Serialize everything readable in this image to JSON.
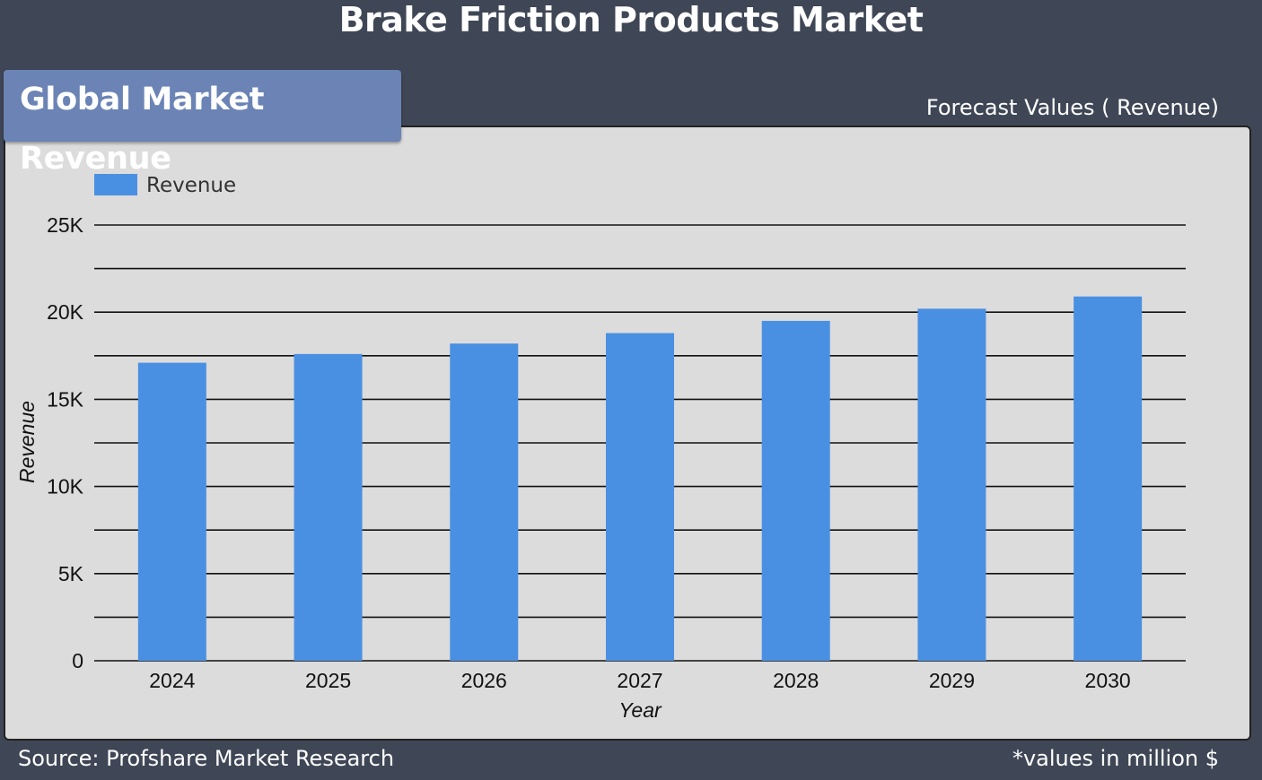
{
  "header": {
    "title": "Brake Friction Products Market"
  },
  "panel": {
    "tab_label": "Global Market Revenue",
    "forecast_label": "Forecast Values ( Revenue)"
  },
  "footer": {
    "source": "Source: Profshare Market Research",
    "note": "*values in million $"
  },
  "colors": {
    "background": "#3f4756",
    "panel": "#dcdcdc",
    "tab": "#6b84b5",
    "bar": "#4a90e2"
  },
  "chart_data": {
    "type": "bar",
    "categories": [
      "2024",
      "2025",
      "2026",
      "2027",
      "2028",
      "2029",
      "2030"
    ],
    "series": [
      {
        "name": "Revenue",
        "values": [
          17100,
          17600,
          18200,
          18800,
          19500,
          20200,
          20900
        ]
      }
    ],
    "xlabel": "Year",
    "ylabel": "Revenue",
    "ylim": [
      0,
      25000
    ],
    "yticks": [
      0,
      5000,
      10000,
      15000,
      20000,
      25000
    ],
    "ytick_labels": [
      "0",
      "5K",
      "10K",
      "15K",
      "20K",
      "25K"
    ],
    "grid": true,
    "legend": "top-left"
  }
}
